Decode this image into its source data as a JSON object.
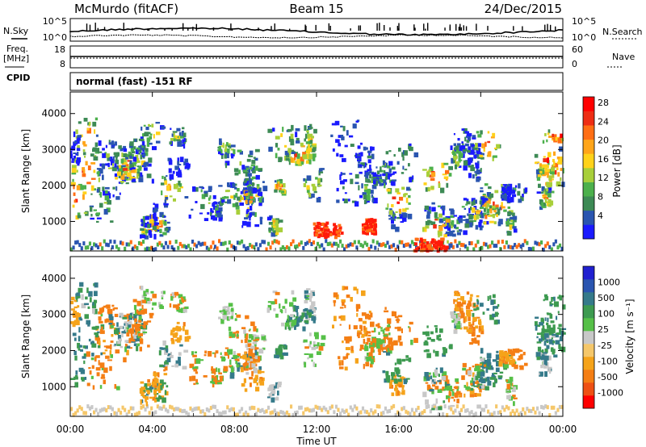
{
  "header": {
    "station": "McMurdo (fitACF)",
    "beam": "Beam 15",
    "date": "24/Dec/2015"
  },
  "left_labels": {
    "nsky": "N.Sky",
    "freq": "Freq.",
    "freq_unit": "[MHz]",
    "cpid": "CPID"
  },
  "right_labels": {
    "nsearch": "N.Search",
    "nave": "Nave"
  },
  "cpid_text": "normal (fast) -151 RF",
  "chart_data": [
    {
      "type": "line",
      "name": "noise-panel",
      "ylabels_left": [
        "10^5",
        "10^0"
      ],
      "ylabels_right": [
        "10^5",
        "10^0"
      ]
    },
    {
      "type": "line",
      "name": "frequency-panel",
      "ylabels_left": [
        "18",
        "8"
      ],
      "ylabels_right": [
        "60",
        "0"
      ]
    },
    {
      "type": "heatmap",
      "name": "power",
      "ylabel": "Slant Range [km]",
      "yticks": [
        "1000",
        "2000",
        "3000",
        "4000"
      ],
      "ylim": [
        180,
        4600
      ],
      "xlim_hours": [
        0,
        24
      ],
      "colorbar": {
        "label": "Power [dB]",
        "ticks": [
          "4",
          "8",
          "12",
          "16",
          "20",
          "24",
          "28"
        ],
        "colors": [
          "#1a1aff",
          "#2a55b0",
          "#3d8a55",
          "#4cb04c",
          "#a8cf3a",
          "#ffd21a",
          "#ffa51a",
          "#ff6e14",
          "#ee2d14",
          "#ff0000"
        ]
      }
    },
    {
      "type": "heatmap",
      "name": "velocity",
      "ylabel": "Slant Range [km]",
      "yticks": [
        "1000",
        "2000",
        "3000",
        "4000"
      ],
      "ylim": [
        180,
        4600
      ],
      "xlim_hours": [
        0,
        24
      ],
      "colorbar": {
        "label": "Velocity [m s⁻¹]",
        "ticks": [
          "1000",
          "500",
          "100",
          "25",
          "-25",
          "-100",
          "-500",
          "-1000"
        ],
        "colors": [
          "#2020d0",
          "#2a55b0",
          "#357a8a",
          "#3d9a50",
          "#56c048",
          "#c8c8c8",
          "#f5c76a",
          "#f5a31a",
          "#f47e14",
          "#ee5014",
          "#ff0000"
        ]
      }
    }
  ],
  "xaxis": {
    "ticks": [
      "00:00",
      "04:00",
      "08:00",
      "12:00",
      "16:00",
      "20:00",
      "00:00"
    ],
    "label": "Time UT"
  }
}
